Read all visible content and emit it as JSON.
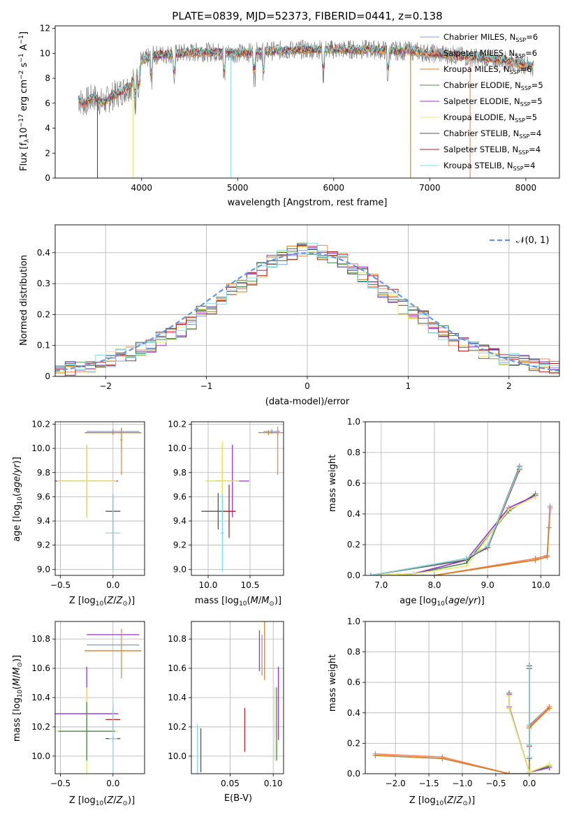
{
  "figure_title": "PLATE=0839, MJD=52373, FIBERID=0441, z=0.138",
  "colors": {
    "chabrier_miles": "#7f9fd6",
    "salpeter_miles": "#ff7f50",
    "kroupa_miles": "#d08020",
    "chabrier_elodie": "#4a8a4a",
    "salpeter_elodie": "#9932cc",
    "kroupa_elodie": "#e8e86a",
    "chabrier_stelib": "#555555",
    "salpeter_stelib": "#b22222",
    "kroupa_stelib": "#7fdfe0",
    "data_spectrum": "#808080",
    "normal_curve": "#6495ed",
    "grid": "#b0b0b0"
  },
  "chart_data": [
    {
      "id": "spectrum",
      "type": "line",
      "title": "PLATE=0839, MJD=52373, FIBERID=0441, z=0.138",
      "xlabel": "wavelength [Angstrom, rest frame]",
      "ylabel": "Flux [f_λ 10^-17 erg cm^-2 s^-1 A^-1]",
      "xlim": [
        3100,
        8350
      ],
      "ylim": [
        0,
        12.2
      ],
      "xticks": [
        4000,
        5000,
        6000,
        7000,
        8000
      ],
      "yticks": [
        0,
        2,
        4,
        6,
        8,
        10,
        12
      ],
      "grid": false,
      "legend_position": "right",
      "legend": [
        {
          "name": "Chabrier MILES, N_SSP=6",
          "label": "Chabrier MILES, N",
          "sub": "SSP",
          "tail": "=6",
          "color_key": "chabrier_miles"
        },
        {
          "name": "Salpeter MILES, N_SSP=6",
          "label": "Salpeter MILES, N",
          "sub": "SSP",
          "tail": "=6",
          "color_key": "salpeter_miles"
        },
        {
          "name": "Kroupa MILES, N_SSP=6",
          "label": "Kroupa MILES, N",
          "sub": "SSP",
          "tail": "=6",
          "color_key": "kroupa_miles"
        },
        {
          "name": "Chabrier ELODIE, N_SSP=5",
          "label": "Chabrier ELODIE, N",
          "sub": "SSP",
          "tail": "=5",
          "color_key": "chabrier_elodie"
        },
        {
          "name": "Salpeter ELODIE, N_SSP=5",
          "label": "Salpeter ELODIE, N",
          "sub": "SSP",
          "tail": "=5",
          "color_key": "salpeter_elodie"
        },
        {
          "name": "Kroupa ELODIE, N_SSP=5",
          "label": "Kroupa ELODIE, N",
          "sub": "SSP",
          "tail": "=5",
          "color_key": "kroupa_elodie"
        },
        {
          "name": "Chabrier STELIB, N_SSP=4",
          "label": "Chabrier STELIB, N",
          "sub": "SSP",
          "tail": "=4",
          "color_key": "chabrier_stelib"
        },
        {
          "name": "Salpeter STELIB, N_SSP=4",
          "label": "Salpeter STELIB, N",
          "sub": "SSP",
          "tail": "=4",
          "color_key": "salpeter_stelib"
        },
        {
          "name": "Kroupa STELIB, N_SSP=4",
          "label": "Kroupa STELIB, N",
          "sub": "SSP",
          "tail": "=4",
          "color_key": "kroupa_stelib"
        }
      ],
      "data_x": [
        3340,
        3400,
        3500,
        3600,
        3700,
        3800,
        3900,
        4000,
        4100,
        4200,
        4400,
        4600,
        4800,
        5000,
        5200,
        5400,
        5600,
        5800,
        6000,
        6200,
        6400,
        6600,
        6800,
        7000,
        7200,
        7400,
        7600,
        7800,
        8000,
        8080
      ],
      "data_y": [
        6.3,
        6.0,
        6.5,
        6.0,
        6.6,
        7.0,
        7.5,
        9.3,
        9.8,
        9.9,
        10.0,
        10.1,
        10.1,
        10.0,
        10.1,
        10.2,
        10.3,
        10.3,
        10.3,
        10.3,
        10.3,
        10.2,
        10.2,
        10.0,
        9.9,
        9.7,
        9.6,
        9.4,
        9.1,
        8.9
      ],
      "model_drops": [
        {
          "x": 3540,
          "color_key": "salpeter_stelib"
        },
        {
          "x": 3910,
          "color_key": "kroupa_elodie"
        },
        {
          "x": 4930,
          "color_key": "kroupa_stelib"
        },
        {
          "x": 6800,
          "color_key": "kroupa_miles"
        },
        {
          "x": 7420,
          "color_key": "salpeter_miles"
        }
      ]
    },
    {
      "id": "residual_hist",
      "type": "line",
      "xlabel": "(data-model)/error",
      "ylabel": "Normed distribution",
      "xlim": [
        -2.5,
        2.5
      ],
      "ylim": [
        0,
        0.49
      ],
      "xticks": [
        -2,
        -1,
        0,
        1,
        2
      ],
      "yticks": [
        0.0,
        0.1,
        0.2,
        0.3,
        0.4
      ],
      "grid": true,
      "legend_position": "top-right",
      "legend": [
        {
          "name": "N(0,1)",
          "color_key": "normal_curve",
          "style": "dashed"
        }
      ],
      "bin_edges_start": -2.5,
      "bin_width": 0.1,
      "base_values": [
        0.018,
        0.025,
        0.03,
        0.035,
        0.045,
        0.055,
        0.065,
        0.075,
        0.09,
        0.1,
        0.12,
        0.135,
        0.15,
        0.175,
        0.205,
        0.225,
        0.255,
        0.275,
        0.295,
        0.32,
        0.345,
        0.37,
        0.385,
        0.4,
        0.41,
        0.41,
        0.4,
        0.39,
        0.375,
        0.355,
        0.33,
        0.31,
        0.28,
        0.26,
        0.225,
        0.21,
        0.19,
        0.16,
        0.14,
        0.12,
        0.105,
        0.09,
        0.08,
        0.065,
        0.055,
        0.05,
        0.045,
        0.04,
        0.035,
        0.03
      ],
      "normal_curve": {
        "mu": 0,
        "sigma": 1
      }
    },
    {
      "id": "age_vs_Z",
      "type": "scatter",
      "xlabel": "Z [log10(Z/Z⊙)]",
      "ylabel": "age [log10(age/yr)]",
      "xlim": [
        -0.55,
        0.3
      ],
      "ylim": [
        8.95,
        10.22
      ],
      "xticks": [
        -0.5,
        0.0
      ],
      "yticks": [
        9.0,
        9.2,
        9.4,
        9.6,
        9.8,
        10.0,
        10.2
      ],
      "grid": true,
      "points": [
        {
          "x": 0.0,
          "y": 10.14,
          "xerr": 0.25,
          "yerr": 0.02,
          "color_key": "chabrier_miles"
        },
        {
          "x": 0.0,
          "y": 10.13,
          "xerr": 0.27,
          "yerr": 0.02,
          "color_key": "salpeter_miles"
        },
        {
          "x": 0.0,
          "y": 10.13,
          "xerr": 0.27,
          "yerr": 0.01,
          "color_key": "kroupa_miles"
        },
        {
          "x": 0.08,
          "y": 10.07,
          "xerr": 0.01,
          "yerr": 0.1,
          "color_key": "kroupa_miles"
        },
        {
          "x": 0.08,
          "y": 9.92,
          "xerr": 0.0,
          "yerr": 0.14,
          "color_key": "salpeter_miles"
        },
        {
          "x": -0.25,
          "y": 9.73,
          "xerr": 0.27,
          "yerr": 0.3,
          "color_key": "chabrier_elodie"
        },
        {
          "x": -0.25,
          "y": 9.73,
          "xerr": 0.3,
          "yerr": 0.3,
          "color_key": "salpeter_elodie"
        },
        {
          "x": -0.25,
          "y": 9.73,
          "xerr": 0.28,
          "yerr": 0.3,
          "color_key": "kroupa_elodie"
        },
        {
          "x": 0.0,
          "y": 9.48,
          "xerr": 0.07,
          "yerr": 0.14,
          "color_key": "chabrier_stelib"
        },
        {
          "x": 0.0,
          "y": 9.3,
          "xerr": 0.01,
          "yerr": 0.3,
          "color_key": "salpeter_stelib"
        },
        {
          "x": 0.0,
          "y": 9.3,
          "xerr": 0.07,
          "yerr": 0.32,
          "color_key": "kroupa_stelib"
        }
      ]
    },
    {
      "id": "age_vs_mass",
      "type": "scatter",
      "xlabel": "mass [log10(M/M⊙)]",
      "ylabel": "",
      "xlim": [
        9.8,
        10.9
      ],
      "ylim": [
        8.95,
        10.22
      ],
      "xticks": [
        10.0,
        10.5
      ],
      "yticks": [
        9.0,
        9.2,
        9.4,
        9.6,
        9.8,
        10.0,
        10.2
      ],
      "grid": true,
      "points": [
        {
          "x": 10.76,
          "y": 10.14,
          "xerr": 0.1,
          "yerr": 0.02,
          "color_key": "chabrier_miles"
        },
        {
          "x": 10.83,
          "y": 10.13,
          "xerr": 0.07,
          "yerr": 0.02,
          "color_key": "salpeter_miles"
        },
        {
          "x": 10.72,
          "y": 10.13,
          "xerr": 0.12,
          "yerr": 0.02,
          "color_key": "kroupa_miles"
        },
        {
          "x": 10.83,
          "y": 9.98,
          "xerr": 0.0,
          "yerr": 0.2,
          "color_key": "salpeter_miles"
        },
        {
          "x": 10.17,
          "y": 9.73,
          "xerr": 0.2,
          "yerr": 0.3,
          "color_key": "chabrier_elodie"
        },
        {
          "x": 10.29,
          "y": 9.73,
          "xerr": 0.2,
          "yerr": 0.3,
          "color_key": "salpeter_elodie"
        },
        {
          "x": 10.17,
          "y": 9.73,
          "xerr": 0.2,
          "yerr": 0.33,
          "color_key": "kroupa_elodie"
        },
        {
          "x": 10.12,
          "y": 9.48,
          "xerr": 0.2,
          "yerr": 0.15,
          "color_key": "chabrier_stelib"
        },
        {
          "x": 10.25,
          "y": 9.48,
          "xerr": 0.08,
          "yerr": 0.22,
          "color_key": "salpeter_stelib"
        },
        {
          "x": 10.17,
          "y": 9.3,
          "xerr": 0.02,
          "yerr": 0.32,
          "color_key": "kroupa_stelib"
        }
      ]
    },
    {
      "id": "weight_vs_age",
      "type": "line",
      "xlabel": "age [log10(age/yr)]",
      "ylabel": "mass weight",
      "xlim": [
        6.7,
        10.35
      ],
      "ylim": [
        0,
        1.0
      ],
      "xticks": [
        7,
        8,
        9,
        10
      ],
      "yticks": [
        0.0,
        0.2,
        0.4,
        0.6,
        0.8,
        1.0
      ],
      "grid": true,
      "series": [
        {
          "color_key": "chabrier_miles",
          "x": [
            6.8,
            8.0,
            9.9,
            10.12,
            10.17
          ],
          "y": [
            0.0,
            0.0,
            0.1,
            0.12,
            0.45
          ]
        },
        {
          "color_key": "salpeter_miles",
          "x": [
            6.8,
            8.0,
            9.9,
            10.12,
            10.18
          ],
          "y": [
            0.0,
            0.0,
            0.11,
            0.13,
            0.44
          ]
        },
        {
          "color_key": "kroupa_miles",
          "x": [
            6.8,
            8.0,
            9.9,
            10.12,
            10.15
          ],
          "y": [
            0.0,
            0.0,
            0.1,
            0.12,
            0.31
          ]
        },
        {
          "color_key": "chabrier_elodie",
          "x": [
            6.8,
            7.6,
            8.6,
            9.4,
            9.9
          ],
          "y": [
            0.0,
            0.01,
            0.08,
            0.42,
            0.53
          ]
        },
        {
          "color_key": "salpeter_elodie",
          "x": [
            6.8,
            7.6,
            8.6,
            9.4,
            9.9
          ],
          "y": [
            0.0,
            0.01,
            0.1,
            0.44,
            0.52
          ]
        },
        {
          "color_key": "kroupa_elodie",
          "x": [
            6.8,
            7.6,
            8.6,
            9.4,
            9.9
          ],
          "y": [
            0.0,
            0.01,
            0.06,
            0.43,
            0.51
          ]
        },
        {
          "color_key": "chabrier_stelib",
          "x": [
            6.8,
            8.6,
            9.0,
            9.6
          ],
          "y": [
            0.0,
            0.1,
            0.19,
            0.71
          ]
        },
        {
          "color_key": "salpeter_stelib",
          "x": [
            6.8,
            8.6,
            9.0,
            9.6
          ],
          "y": [
            0.0,
            0.11,
            0.18,
            0.69
          ]
        },
        {
          "color_key": "kroupa_stelib",
          "x": [
            6.8,
            8.6,
            9.0,
            9.6
          ],
          "y": [
            0.0,
            0.11,
            0.19,
            0.7
          ]
        }
      ]
    },
    {
      "id": "mass_vs_Z",
      "type": "scatter",
      "xlabel": "Z [log10(Z/Z⊙)]",
      "ylabel": "mass [log10(M/M⊙)]",
      "xlim": [
        -0.55,
        0.3
      ],
      "ylim": [
        9.88,
        10.92
      ],
      "xticks": [
        -0.5,
        0.0
      ],
      "yticks": [
        10.0,
        10.2,
        10.4,
        10.6,
        10.8
      ],
      "grid": true,
      "points": [
        {
          "x": 0.0,
          "y": 10.83,
          "xerr": 0.25,
          "yerr": 0.0,
          "color_key": "salpeter_elodie"
        },
        {
          "x": 0.0,
          "y": 10.76,
          "xerr": 0.25,
          "yerr": 0.0,
          "color_key": "chabrier_miles"
        },
        {
          "x": 0.0,
          "y": 10.72,
          "xerr": 0.27,
          "yerr": 0.0,
          "color_key": "kroupa_miles"
        },
        {
          "x": 0.08,
          "y": 10.7,
          "xerr": 0.0,
          "yerr": 0.17,
          "color_key": "salpeter_miles"
        },
        {
          "x": -0.25,
          "y": 10.29,
          "xerr": 0.3,
          "yerr": 0.32,
          "color_key": "salpeter_elodie"
        },
        {
          "x": -0.25,
          "y": 10.17,
          "xerr": 0.3,
          "yerr": 0.3,
          "color_key": "kroupa_elodie"
        },
        {
          "x": -0.25,
          "y": 10.17,
          "xerr": 0.27,
          "yerr": 0.2,
          "color_key": "chabrier_elodie"
        },
        {
          "x": 0.0,
          "y": 10.25,
          "xerr": 0.07,
          "yerr": 0.08,
          "color_key": "salpeter_stelib"
        },
        {
          "x": 0.0,
          "y": 10.12,
          "xerr": 0.07,
          "yerr": 0.02,
          "color_key": "chabrier_stelib"
        },
        {
          "x": 0.0,
          "y": 10.12,
          "xerr": 0.04,
          "yerr": 0.25,
          "color_key": "kroupa_stelib"
        }
      ]
    },
    {
      "id": "mass_vs_ebv",
      "type": "scatter",
      "xlabel": "E(B-V)",
      "ylabel": "",
      "xlim": [
        0.005,
        0.112
      ],
      "ylim": [
        9.88,
        10.92
      ],
      "xticks": [
        0.05,
        0.1
      ],
      "yticks": [
        10.0,
        10.2,
        10.4,
        10.6,
        10.8
      ],
      "grid": true,
      "points": [
        {
          "x": 0.084,
          "y": 10.72,
          "xerr": 0.0,
          "yerr": 0.14,
          "color_key": "salpeter_elodie"
        },
        {
          "x": 0.087,
          "y": 10.69,
          "xerr": 0.0,
          "yerr": 0.14,
          "color_key": "chabrier_miles"
        },
        {
          "x": 0.09,
          "y": 10.72,
          "xerr": 0.0,
          "yerr": 0.2,
          "color_key": "kroupa_miles"
        },
        {
          "x": 0.106,
          "y": 10.36,
          "xerr": 0.0,
          "yerr": 0.25,
          "color_key": "salpeter_elodie"
        },
        {
          "x": 0.102,
          "y": 10.22,
          "xerr": 0.0,
          "yerr": 0.25,
          "color_key": "kroupa_elodie"
        },
        {
          "x": 0.104,
          "y": 10.22,
          "xerr": 0.0,
          "yerr": 0.25,
          "color_key": "chabrier_elodie"
        },
        {
          "x": 0.067,
          "y": 10.18,
          "xerr": 0.0,
          "yerr": 0.15,
          "color_key": "salpeter_stelib"
        },
        {
          "x": 0.016,
          "y": 10.04,
          "xerr": 0.0,
          "yerr": 0.15,
          "color_key": "chabrier_stelib"
        },
        {
          "x": 0.012,
          "y": 10.05,
          "xerr": 0.0,
          "yerr": 0.17,
          "color_key": "kroupa_stelib"
        }
      ]
    },
    {
      "id": "weight_vs_Z",
      "type": "line",
      "xlabel": "Z [log10(Z/Z⊙)]",
      "ylabel": "mass weight",
      "xlim": [
        -2.45,
        0.45
      ],
      "ylim": [
        0,
        1.0
      ],
      "xticks": [
        -2.0,
        -1.5,
        -1.0,
        -0.5,
        0.0
      ],
      "yticks": [
        0.0,
        0.2,
        0.4,
        0.6,
        0.8,
        1.0
      ],
      "grid": true,
      "series": [
        {
          "color_key": "chabrier_miles",
          "x": [
            -2.3,
            -1.3,
            -0.3,
            0.0,
            0.0,
            0.3
          ],
          "y": [
            0.12,
            0.1,
            0.0,
            0.0,
            0.32,
            0.44
          ]
        },
        {
          "color_key": "salpeter_miles",
          "x": [
            -2.3,
            -1.3,
            -0.3,
            0.0,
            0.0,
            0.3
          ],
          "y": [
            0.13,
            0.11,
            0.0,
            0.0,
            0.31,
            0.44
          ]
        },
        {
          "color_key": "kroupa_miles",
          "x": [
            -2.3,
            -1.3,
            -0.3,
            0.0,
            0.0,
            0.3
          ],
          "y": [
            0.12,
            0.1,
            0.0,
            0.0,
            0.3,
            0.43
          ]
        },
        {
          "color_key": "chabrier_elodie",
          "x": [
            -0.3,
            -0.3,
            0.0,
            0.3
          ],
          "y": [
            0.53,
            0.43,
            0.01,
            0.05
          ]
        },
        {
          "color_key": "salpeter_elodie",
          "x": [
            -0.3,
            -0.3,
            0.0,
            0.3
          ],
          "y": [
            0.52,
            0.44,
            0.01,
            0.04
          ]
        },
        {
          "color_key": "kroupa_elodie",
          "x": [
            -0.3,
            -0.3,
            0.0,
            0.3
          ],
          "y": [
            0.51,
            0.43,
            0.01,
            0.06
          ]
        },
        {
          "color_key": "chabrier_stelib",
          "x": [
            0.0,
            0.0,
            0.0
          ],
          "y": [
            0.71,
            0.19,
            0.1
          ]
        },
        {
          "color_key": "salpeter_stelib",
          "x": [
            0.0,
            0.0,
            0.0
          ],
          "y": [
            0.69,
            0.18,
            0.11
          ]
        },
        {
          "color_key": "kroupa_stelib",
          "x": [
            0.0,
            0.0,
            0.0
          ],
          "y": [
            0.7,
            0.19,
            0.11
          ]
        }
      ]
    }
  ]
}
